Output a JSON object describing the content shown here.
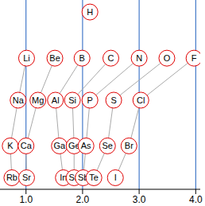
{
  "chart_data": {
    "type": "scatter",
    "color": "#e00000",
    "grid": true,
    "tick_labels": "x",
    "marker": "circle",
    "xlim": [
      0.54,
      4.08
    ],
    "xticks": [
      {
        "value": 1,
        "label": "1.0"
      },
      {
        "value": 2,
        "label": "2.0"
      },
      {
        "value": 3,
        "label": "3.0"
      },
      {
        "value": 4,
        "label": "4.0"
      }
    ],
    "ylim": [
      -0.26,
      3.84
    ],
    "elements": [
      {
        "symbol": "H",
        "x": 2.13,
        "y": 0
      },
      {
        "symbol": "Li",
        "x": 1.01,
        "y": 1
      },
      {
        "symbol": "Be",
        "x": 1.51,
        "y": 1
      },
      {
        "symbol": "B",
        "x": 1.99,
        "y": 1
      },
      {
        "symbol": "C",
        "x": 2.5,
        "y": 1
      },
      {
        "symbol": "N",
        "x": 3.0,
        "y": 1
      },
      {
        "symbol": "O",
        "x": 3.49,
        "y": 1
      },
      {
        "symbol": "F",
        "x": 3.97,
        "y": 1
      },
      {
        "symbol": "Na",
        "x": 0.86,
        "y": 1.91
      },
      {
        "symbol": "Mg",
        "x": 1.21,
        "y": 1.91
      },
      {
        "symbol": "Al",
        "x": 1.52,
        "y": 1.91
      },
      {
        "symbol": "Si",
        "x": 1.82,
        "y": 1.91
      },
      {
        "symbol": "P",
        "x": 2.13,
        "y": 1.91
      },
      {
        "symbol": "S",
        "x": 2.55,
        "y": 1.91
      },
      {
        "symbol": "Cl",
        "x": 3.03,
        "y": 1.91
      },
      {
        "symbol": "K",
        "x": 0.72,
        "y": 2.9
      },
      {
        "symbol": "Ca",
        "x": 1.0,
        "y": 2.9
      },
      {
        "symbol": "Ga",
        "x": 1.59,
        "y": 2.9
      },
      {
        "symbol": "Ge",
        "x": 1.85,
        "y": 2.9
      },
      {
        "symbol": "As",
        "x": 2.06,
        "y": 2.9
      },
      {
        "symbol": "Se",
        "x": 2.44,
        "y": 2.9
      },
      {
        "symbol": "Br",
        "x": 2.82,
        "y": 2.9
      },
      {
        "symbol": "Rb",
        "x": 0.75,
        "y": 3.59
      },
      {
        "symbol": "Sr",
        "x": 1.01,
        "y": 3.59
      },
      {
        "symbol": "In",
        "x": 1.66,
        "y": 3.59
      },
      {
        "symbol": "Sn",
        "x": 1.85,
        "y": 3.59
      },
      {
        "symbol": "Sb",
        "x": 2.01,
        "y": 3.59
      },
      {
        "symbol": "Te",
        "x": 2.2,
        "y": 3.59
      },
      {
        "symbol": "I",
        "x": 2.58,
        "y": 3.59
      }
    ],
    "groups": [
      [
        "Li",
        "Na",
        "K",
        "Rb"
      ],
      [
        "Be",
        "Mg",
        "Ca",
        "Sr"
      ],
      [
        "B",
        "Al",
        "Ga",
        "In"
      ],
      [
        "C",
        "Si",
        "Ge",
        "Sn"
      ],
      [
        "N",
        "P",
        "As",
        "Sb"
      ],
      [
        "O",
        "S",
        "Se",
        "Te"
      ],
      [
        "F",
        "Cl",
        "Br",
        "I"
      ]
    ]
  }
}
